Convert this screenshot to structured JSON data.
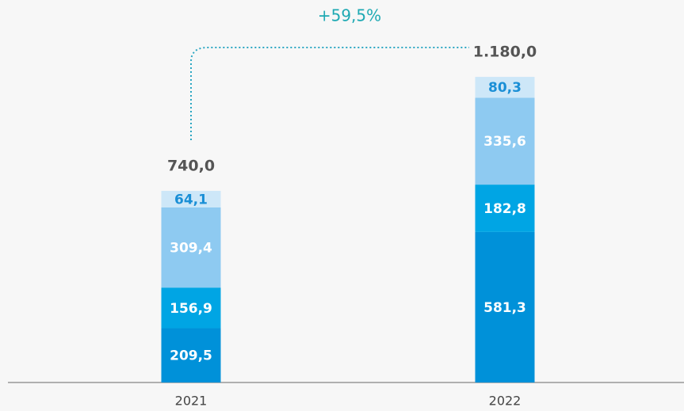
{
  "chart_data": {
    "type": "stacked_bar",
    "annotation": "+59,5%",
    "categories": [
      "2021",
      "2022"
    ],
    "series": [
      {
        "color": "#0091d9",
        "values": [
          209.5,
          581.3
        ],
        "value_labels": [
          "209,5",
          "581,3"
        ]
      },
      {
        "color": "#00a5e4",
        "values": [
          156.9,
          182.8
        ],
        "value_labels": [
          "156,9",
          "182,8"
        ]
      },
      {
        "color": "#8ecaf1",
        "values": [
          309.4,
          335.6
        ],
        "value_labels": [
          "309,4",
          "335,6"
        ]
      },
      {
        "color": "#cde7f8",
        "values": [
          64.1,
          80.3
        ],
        "value_labels": [
          "64,1",
          "80,3"
        ]
      }
    ],
    "totals": {
      "values": [
        740,
        1180
      ],
      "value_labels": [
        "740,0",
        "1.180,0"
      ]
    },
    "ylim": [
      0,
      1350
    ]
  }
}
